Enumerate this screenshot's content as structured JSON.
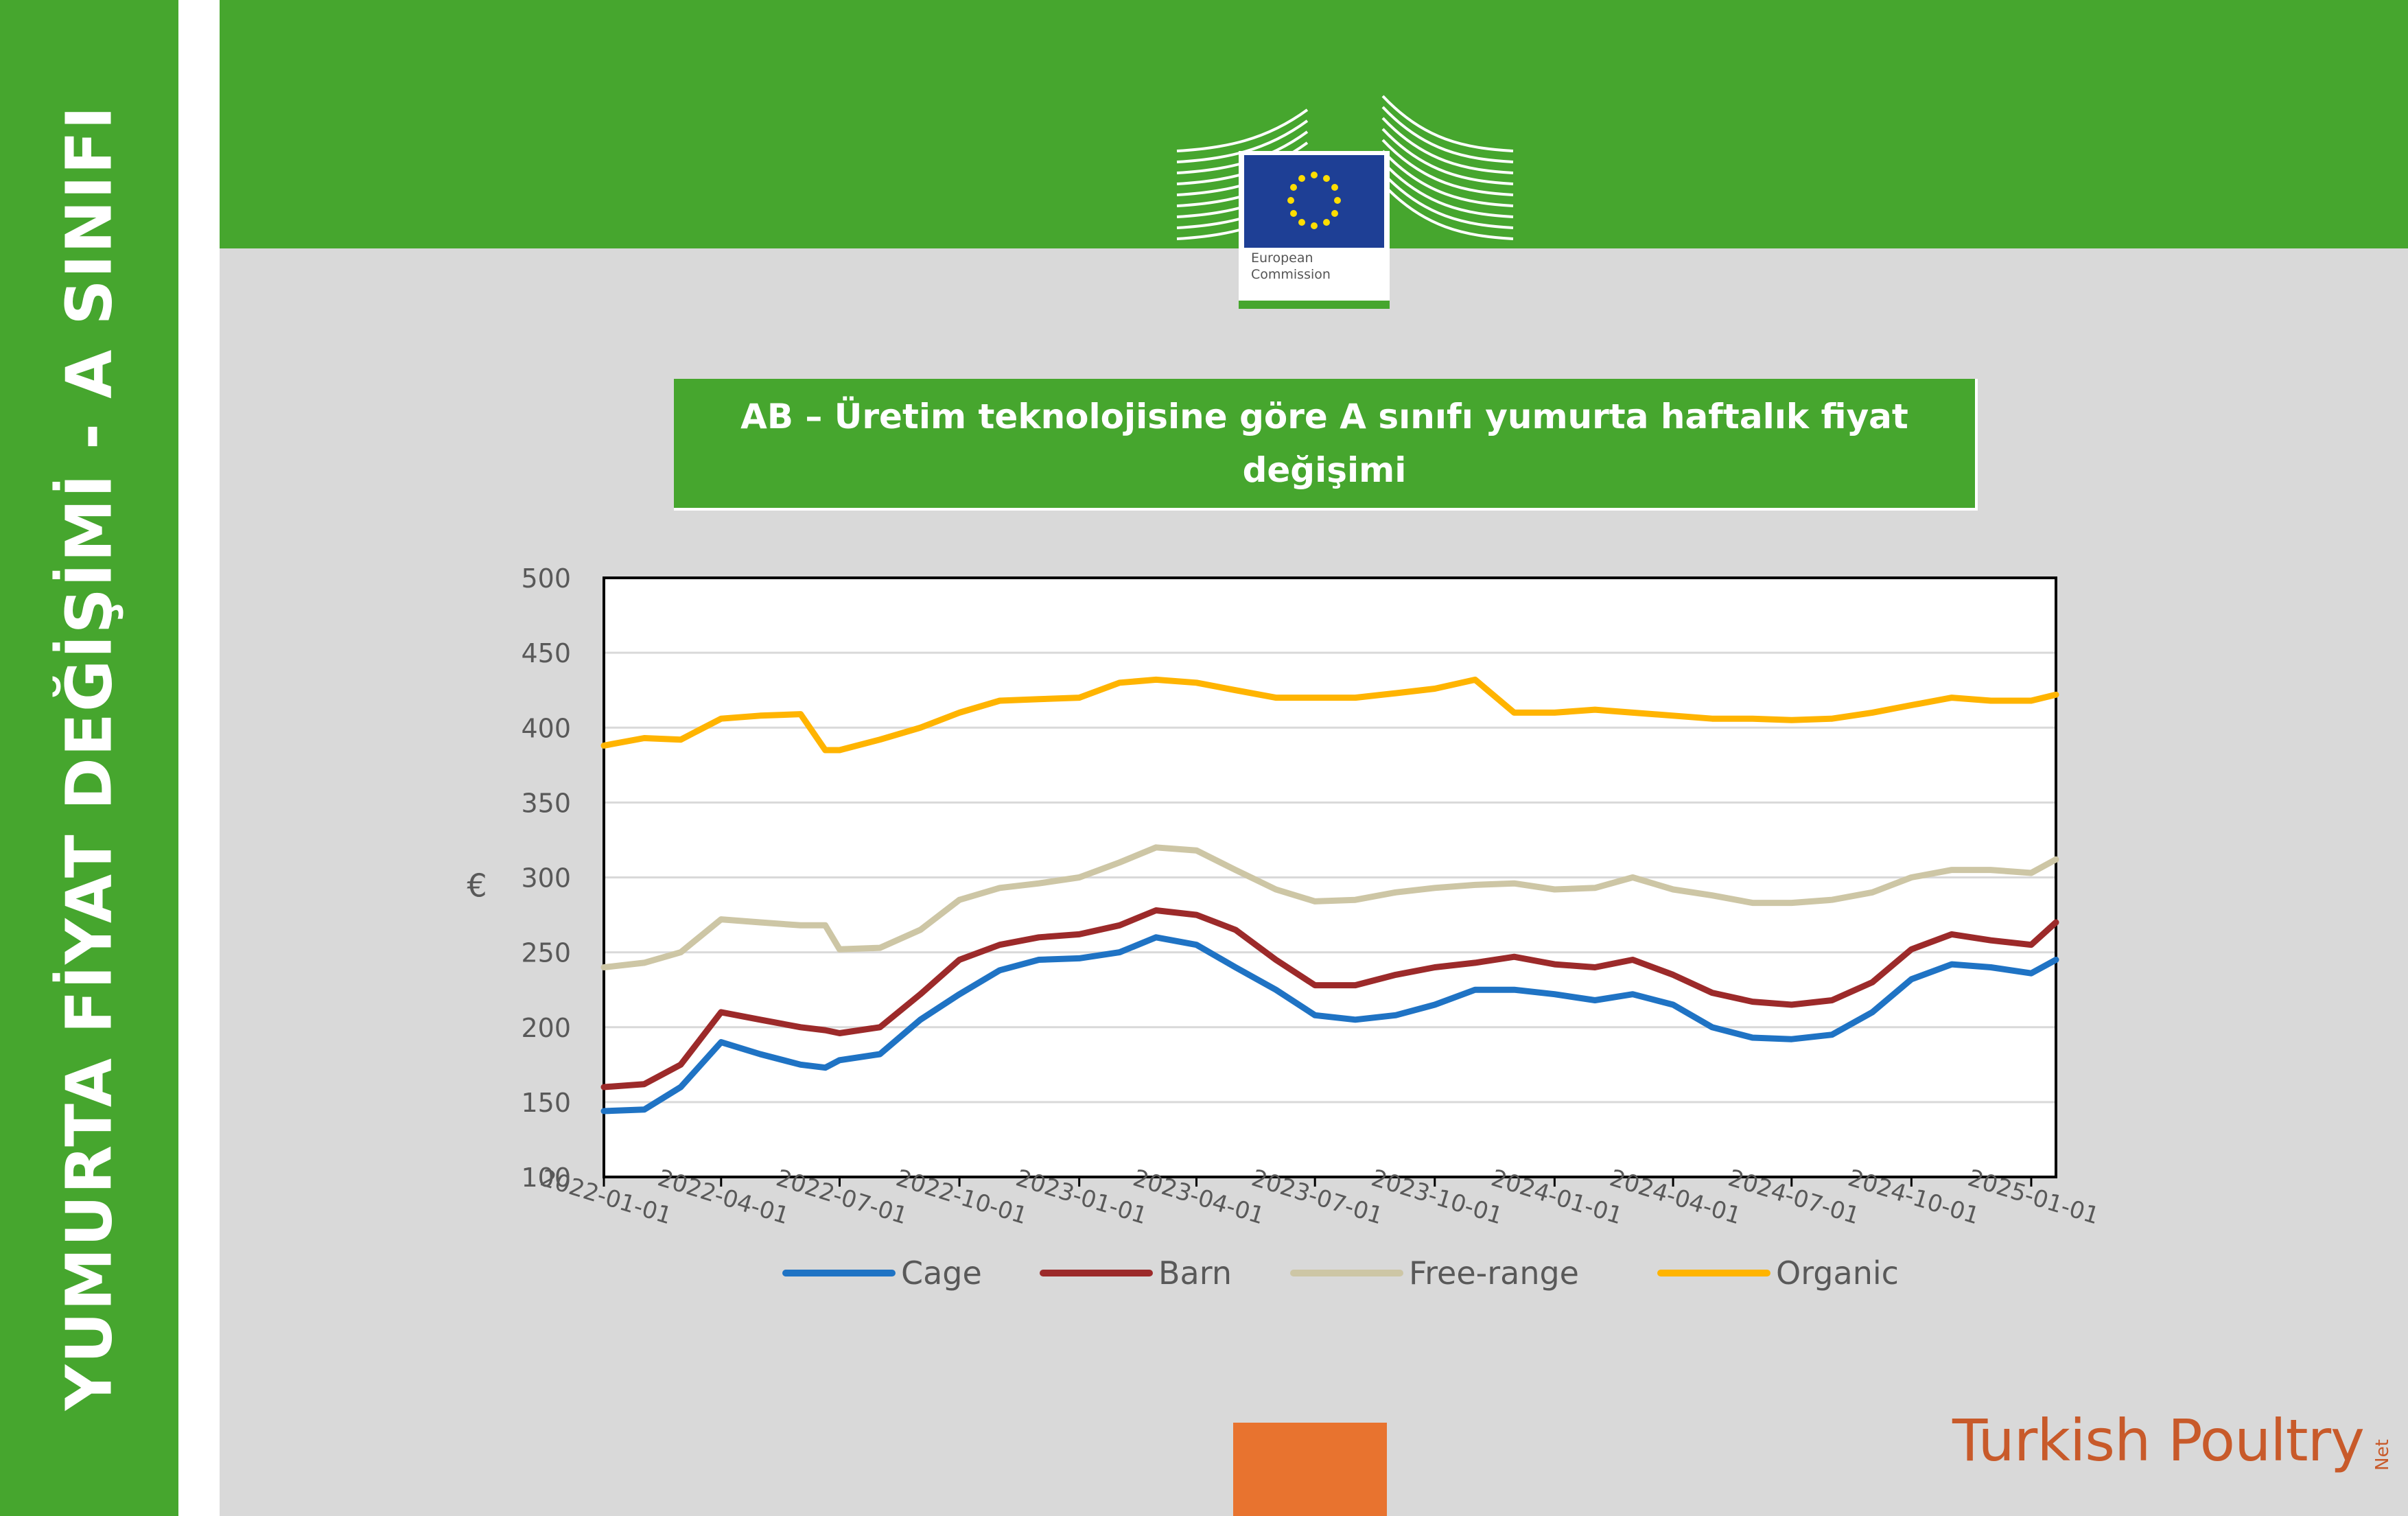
{
  "side_title": "YUMURTA FİYAT DEĞİŞİMİ - A SINIFI",
  "logo": {
    "text": "European Commission",
    "line1": "European",
    "line2": "Commission"
  },
  "chart_title": "AB – Üretim teknolojisine göre A sınıfı yumurta haftalık fiyat değişimi",
  "brand": {
    "name": "Turkish Poultry",
    "suffix": "Net"
  },
  "colors": {
    "green": "#46a62e",
    "grey": "#d9d9d9",
    "orange": "#e8732f",
    "cage": "#1f73c4",
    "barn": "#9c2a2a",
    "free_range": "#cdc6a5",
    "organic": "#ffb400"
  },
  "chart_data": {
    "type": "line",
    "title": "",
    "xlabel": "",
    "ylabel": "€",
    "ylim": [
      100,
      500
    ],
    "yticks": [
      100,
      150,
      200,
      250,
      300,
      350,
      400,
      450,
      500
    ],
    "xticks": [
      "2022-01-01",
      "2022-04-01",
      "2022-07-01",
      "2022-10-01",
      "2023-01-01",
      "2023-04-01",
      "2023-07-01",
      "2023-10-01",
      "2024-01-01",
      "2024-04-01",
      "2024-07-01",
      "2024-10-01",
      "2025-01-01"
    ],
    "xlim": [
      "2022-01-01",
      "2025-01-20"
    ],
    "grid": true,
    "legend": "bottom",
    "x": [
      "2022-01-01",
      "2022-02-01",
      "2022-03-01",
      "2022-04-01",
      "2022-05-01",
      "2022-06-01",
      "2022-06-20",
      "2022-07-01",
      "2022-08-01",
      "2022-09-01",
      "2022-10-01",
      "2022-11-01",
      "2022-12-01",
      "2023-01-01",
      "2023-02-01",
      "2023-03-01",
      "2023-04-01",
      "2023-05-01",
      "2023-06-01",
      "2023-07-01",
      "2023-08-01",
      "2023-09-01",
      "2023-10-01",
      "2023-11-01",
      "2023-12-01",
      "2024-01-01",
      "2024-02-01",
      "2024-03-01",
      "2024-04-01",
      "2024-05-01",
      "2024-06-01",
      "2024-07-01",
      "2024-08-01",
      "2024-09-01",
      "2024-10-01",
      "2024-11-01",
      "2024-12-01",
      "2025-01-01",
      "2025-01-20"
    ],
    "series": [
      {
        "name": "Cage",
        "color": "#1f73c4",
        "values": [
          144,
          145,
          160,
          190,
          182,
          175,
          173,
          178,
          182,
          205,
          222,
          238,
          245,
          246,
          250,
          260,
          255,
          240,
          225,
          208,
          205,
          208,
          215,
          225,
          225,
          222,
          218,
          222,
          215,
          200,
          193,
          192,
          195,
          210,
          232,
          242,
          240,
          236,
          245
        ]
      },
      {
        "name": "Barn",
        "color": "#9c2a2a",
        "values": [
          160,
          162,
          175,
          210,
          205,
          200,
          198,
          196,
          200,
          222,
          245,
          255,
          260,
          262,
          268,
          278,
          275,
          265,
          245,
          228,
          228,
          235,
          240,
          243,
          247,
          242,
          240,
          245,
          235,
          223,
          217,
          215,
          218,
          230,
          252,
          262,
          258,
          255,
          270
        ]
      },
      {
        "name": "Free-range",
        "color": "#cdc6a5",
        "values": [
          240,
          243,
          250,
          272,
          270,
          268,
          268,
          252,
          253,
          265,
          285,
          293,
          296,
          300,
          310,
          320,
          318,
          305,
          292,
          284,
          285,
          290,
          293,
          295,
          296,
          292,
          293,
          300,
          292,
          288,
          283,
          283,
          285,
          290,
          300,
          305,
          305,
          303,
          312
        ]
      },
      {
        "name": "Organic",
        "color": "#ffb400",
        "values": [
          388,
          393,
          392,
          406,
          408,
          409,
          385,
          385,
          392,
          400,
          410,
          418,
          419,
          420,
          430,
          432,
          430,
          425,
          420,
          420,
          420,
          423,
          426,
          432,
          410,
          410,
          412,
          410,
          408,
          406,
          406,
          405,
          406,
          410,
          415,
          420,
          418,
          418,
          422
        ]
      }
    ]
  }
}
